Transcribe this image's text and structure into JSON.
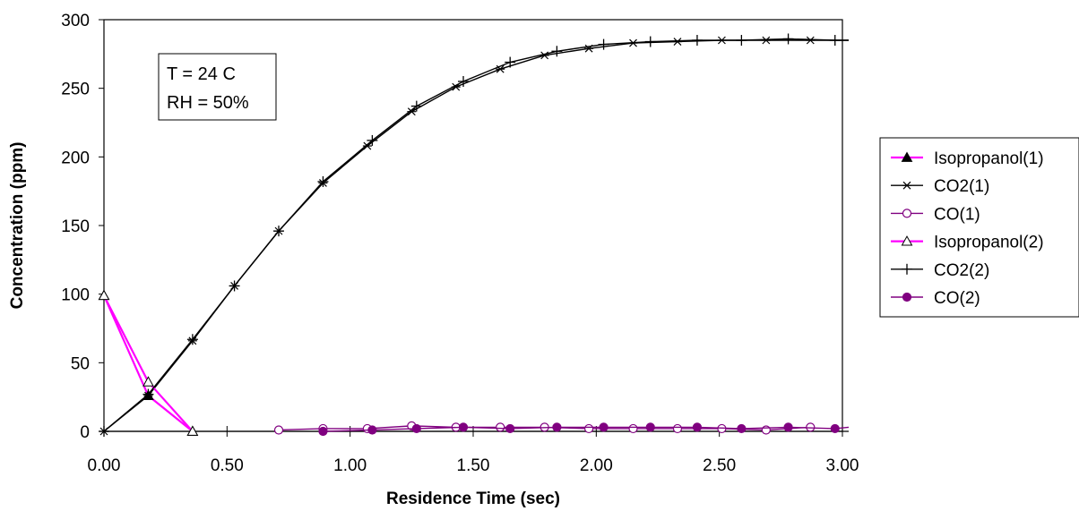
{
  "chart_data": {
    "type": "line",
    "title": "",
    "xlabel": "Residence Time (sec)",
    "ylabel": "Concentration (ppm)",
    "xlim": [
      0,
      3
    ],
    "ylim": [
      0,
      300
    ],
    "x_ticks": [
      "0.00",
      "0.50",
      "1.00",
      "1.50",
      "2.00",
      "2.50",
      "3.00"
    ],
    "y_ticks": [
      "0",
      "50",
      "100",
      "150",
      "200",
      "250",
      "300"
    ],
    "grid": false,
    "legend_position": "right",
    "annotation": [
      "T = 24 C",
      "RH = 50%"
    ],
    "series": [
      {
        "name": "Isopropanol(1)",
        "color": "#ff00ff",
        "marker": "triangle-filled",
        "x": [
          0.0,
          0.18,
          0.36
        ],
        "y": [
          99,
          26,
          0
        ]
      },
      {
        "name": "CO2(1)",
        "color": "#000000",
        "marker": "asterisk",
        "x": [
          0.0,
          0.18,
          0.36,
          0.53,
          0.71,
          0.89,
          1.07,
          1.25,
          1.43,
          1.61,
          1.79,
          1.97,
          2.15,
          2.33,
          2.51,
          2.69,
          2.87,
          3.05
        ],
        "y": [
          0,
          26,
          66,
          106,
          146,
          181,
          208,
          233,
          251,
          264,
          274,
          279,
          283,
          284,
          285,
          285,
          285,
          285
        ]
      },
      {
        "name": "CO(1)",
        "color": "#800080",
        "marker": "circle-open",
        "x": [
          0.71,
          0.89,
          1.07,
          1.25,
          1.43,
          1.61,
          1.79,
          1.97,
          2.15,
          2.33,
          2.51,
          2.69,
          2.87
        ],
        "y": [
          1,
          2,
          2,
          4,
          3,
          3,
          3,
          2,
          2,
          2,
          2,
          1,
          3
        ]
      },
      {
        "name": "Isopropanol(2)",
        "color": "#ff00ff",
        "marker": "triangle-open",
        "x": [
          0.0,
          0.18,
          0.36
        ],
        "y": [
          99,
          36,
          0
        ]
      },
      {
        "name": "CO2(2)",
        "color": "#000000",
        "marker": "plus",
        "x": [
          0.0,
          0.18,
          0.36,
          0.53,
          0.71,
          0.89,
          1.09,
          1.27,
          1.46,
          1.65,
          1.84,
          2.03,
          2.22,
          2.41,
          2.59,
          2.78,
          2.97,
          3.05
        ],
        "y": [
          0,
          27,
          67,
          106,
          146,
          182,
          212,
          237,
          255,
          269,
          277,
          282,
          284,
          285,
          285,
          286,
          285,
          285
        ]
      },
      {
        "name": "CO(2)",
        "color": "#800080",
        "marker": "circle-filled",
        "x": [
          0.89,
          1.09,
          1.27,
          1.46,
          1.65,
          1.84,
          2.03,
          2.22,
          2.41,
          2.59,
          2.78,
          2.97,
          3.05
        ],
        "y": [
          0,
          1,
          2,
          3,
          2,
          3,
          3,
          3,
          3,
          2,
          3,
          2,
          3
        ]
      }
    ]
  }
}
